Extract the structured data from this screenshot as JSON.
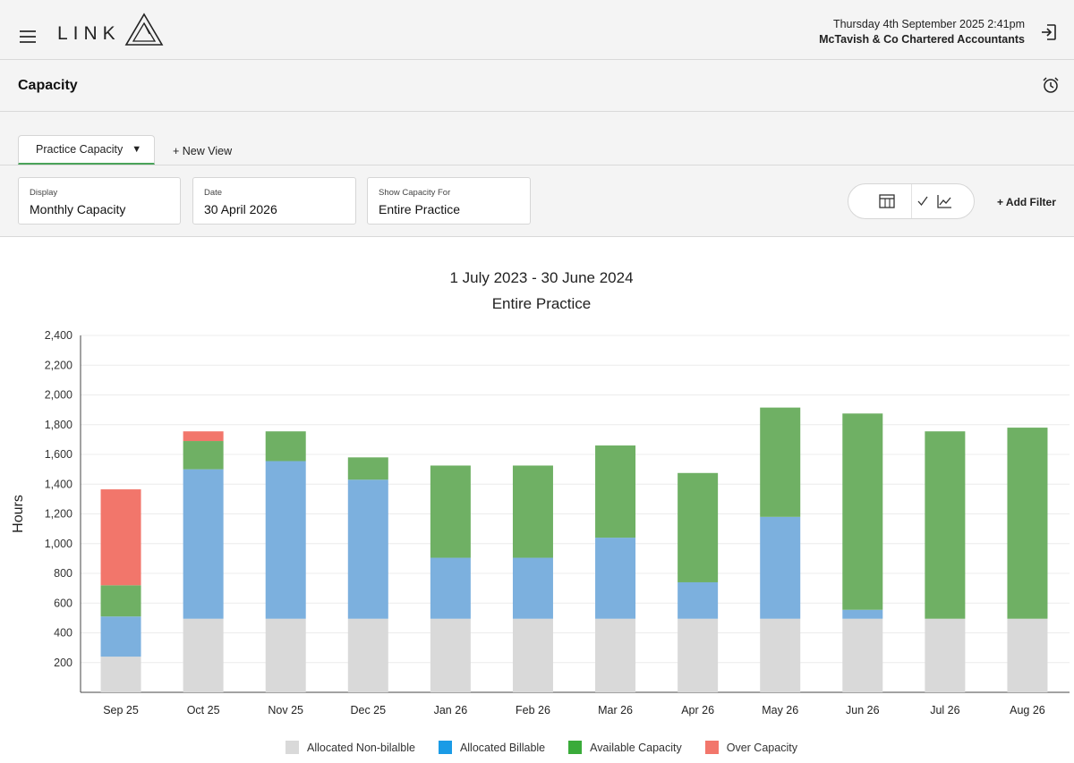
{
  "header": {
    "logo_text": "LINK",
    "datetime": "Thursday 4th September 2025  2:41pm",
    "company": "McTavish & Co Chartered Accountants"
  },
  "page": {
    "title": "Capacity"
  },
  "tabs": {
    "active_label": "Practice Capacity",
    "new_view_label": "+ New View"
  },
  "filters": {
    "display": {
      "label": "Display",
      "value": "Monthly Capacity"
    },
    "date": {
      "label": "Date",
      "value": "30 April 2026"
    },
    "capacity_for": {
      "label": "Show Capacity For",
      "value": "Entire Practice"
    },
    "add_filter_label": "+ Add Filter"
  },
  "colors": {
    "non_billable": "#d9d9d9",
    "billable": "#7cb0de",
    "available": "#6fb064",
    "over": "#f2766b",
    "legend_billable": "#1a9be6",
    "legend_available": "#3aab3a"
  },
  "chart_data": {
    "type": "bar",
    "stacked": true,
    "title": "1 July 2023 - 30 June 2024",
    "subtitle": "Entire Practice",
    "ylabel": "Hours",
    "xlabel": "",
    "ylim": [
      0,
      2400
    ],
    "yticks": [
      "200",
      "400",
      "600",
      "800",
      "1,000",
      "1,200",
      "1,400",
      "1,600",
      "1,800",
      "2,000",
      "2,200",
      "2,400"
    ],
    "ytick_values": [
      200,
      400,
      600,
      800,
      1000,
      1200,
      1400,
      1600,
      1800,
      2000,
      2200,
      2400
    ],
    "grid": true,
    "legend_position": "bottom",
    "categories": [
      "Sep 25",
      "Oct 25",
      "Nov 25",
      "Dec 25",
      "Jan 26",
      "Feb 26",
      "Mar 26",
      "Apr 26",
      "May 26",
      "Jun 26",
      "Jul 26",
      "Aug 26"
    ],
    "series": [
      {
        "name": "Allocated Non-bilalble",
        "color_key": "non_billable",
        "values": [
          240,
          495,
          495,
          495,
          495,
          495,
          495,
          495,
          495,
          495,
          495,
          495
        ]
      },
      {
        "name": "Allocated Billable",
        "color_key": "billable",
        "values": [
          270,
          1005,
          1060,
          935,
          410,
          410,
          545,
          245,
          685,
          60,
          0,
          0
        ]
      },
      {
        "name": "Available Capacity",
        "color_key": "available",
        "values": [
          210,
          190,
          200,
          150,
          620,
          620,
          620,
          735,
          735,
          1320,
          1260,
          1285
        ]
      },
      {
        "name": "Over Capacity",
        "color_key": "over",
        "values": [
          645,
          65,
          0,
          0,
          0,
          0,
          0,
          0,
          0,
          0,
          0,
          0
        ]
      }
    ],
    "legend": [
      {
        "label": "Allocated Non-bilalble",
        "color_key": "non_billable"
      },
      {
        "label": "Allocated Billable",
        "color_key": "legend_billable"
      },
      {
        "label": "Available Capacity",
        "color_key": "legend_available"
      },
      {
        "label": "Over Capacity",
        "color_key": "over"
      }
    ]
  }
}
